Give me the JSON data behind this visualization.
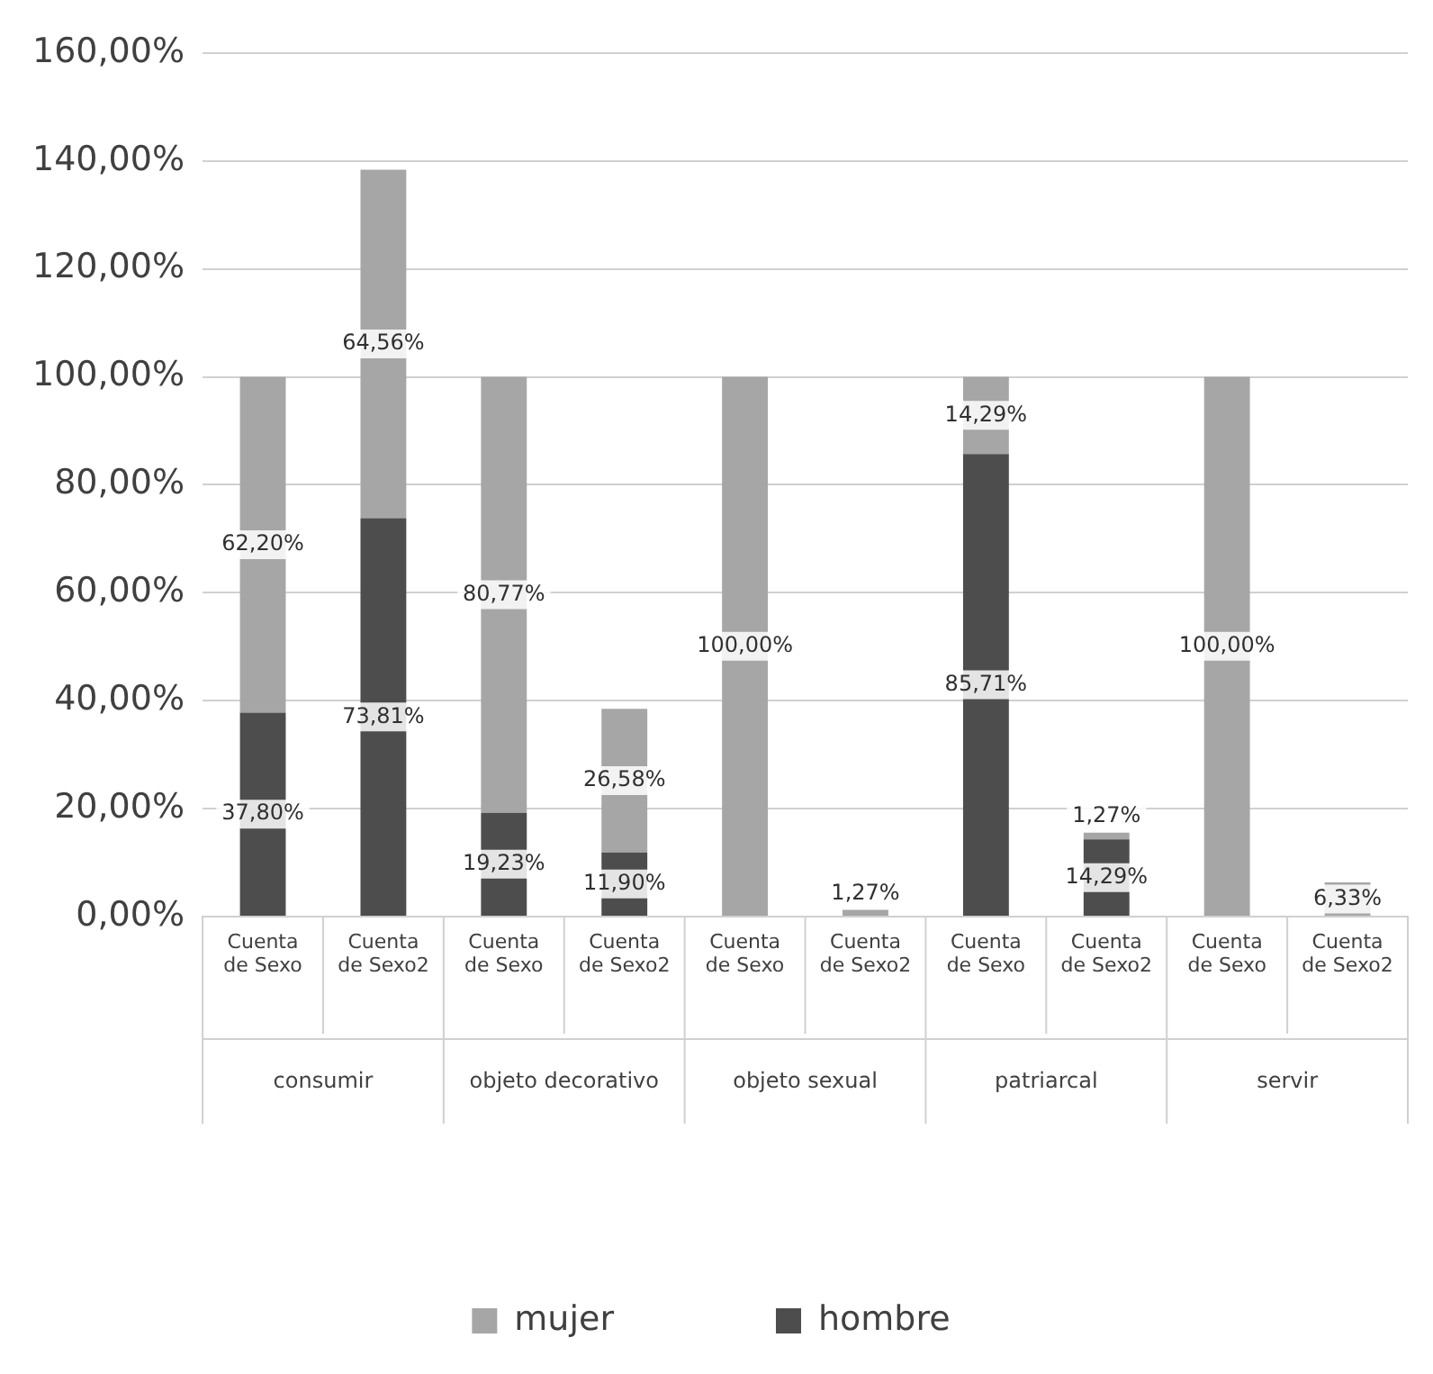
{
  "chart_data": {
    "type": "bar",
    "stacked": true,
    "categories": [
      "Cuenta de Sexo",
      "Cuenta de Sexo2",
      "Cuenta de Sexo",
      "Cuenta de Sexo2",
      "Cuenta de Sexo",
      "Cuenta de Sexo2",
      "Cuenta de Sexo",
      "Cuenta de Sexo2",
      "Cuenta de Sexo",
      "Cuenta de Sexo2"
    ],
    "series": [
      {
        "name": "hombre",
        "color": "#4d4d4d",
        "values": [
          37.8,
          73.81,
          19.23,
          11.9,
          0,
          0,
          85.71,
          14.29,
          0,
          0
        ],
        "value_labels": [
          "37,80%",
          "73,81%",
          "19,23%",
          "11,90%",
          null,
          null,
          "85,71%",
          "14,29%",
          null,
          null
        ]
      },
      {
        "name": "mujer",
        "color": "#a6a6a6",
        "values": [
          62.2,
          64.56,
          80.77,
          26.58,
          100.0,
          1.27,
          14.29,
          1.27,
          100.0,
          6.33
        ],
        "value_labels": [
          "62,20%",
          "64,56%",
          "80,77%",
          "26,58%",
          "100,00%",
          "1,27%",
          "14,29%",
          "1,27%",
          "100,00%",
          "6,33%"
        ]
      }
    ],
    "ylim": [
      0,
      160
    ],
    "yticks": [
      {
        "value": 0,
        "label": "0,00%"
      },
      {
        "value": 20,
        "label": "20,00%"
      },
      {
        "value": 40,
        "label": "40,00%"
      },
      {
        "value": 60,
        "label": "60,00%"
      },
      {
        "value": 80,
        "label": "80,00%"
      },
      {
        "value": 100,
        "label": "100,00%"
      },
      {
        "value": 120,
        "label": "120,00%"
      },
      {
        "value": 140,
        "label": "140,00%"
      },
      {
        "value": 160,
        "label": "160,00%"
      }
    ],
    "annotations": [
      "consumir",
      "objeto decorativo",
      "objeto sexual",
      "patriarcal",
      "servir"
    ],
    "grid": "y",
    "legend": "bottom"
  }
}
